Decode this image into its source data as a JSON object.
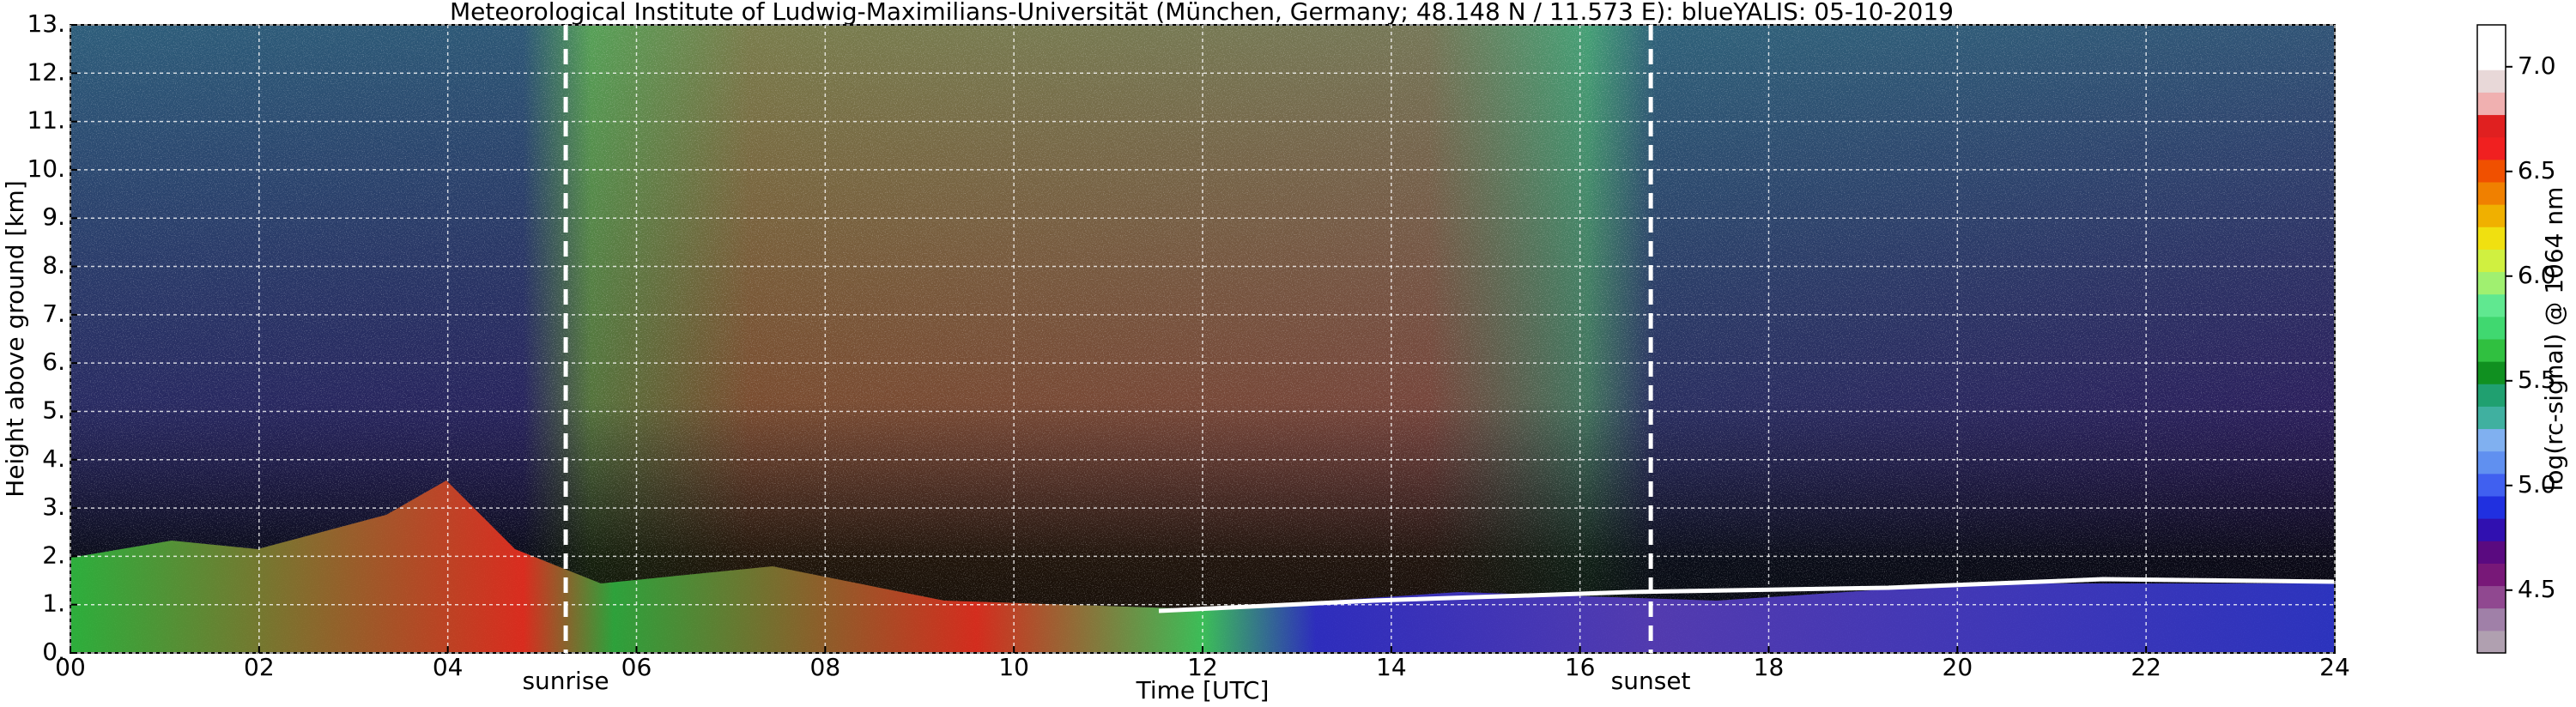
{
  "chart_data": {
    "type": "heatmap",
    "title": "Meteorological Institute of Ludwig-Maximilians-Universität (München, Germany; 48.148 N / 11.573 E):    blueYALIS: 05-10-2019",
    "xlabel": "Time [UTC]",
    "ylabel": "Height above ground [km]",
    "xlim": [
      0,
      24
    ],
    "xticks": [
      {
        "value": 0,
        "label": "00"
      },
      {
        "value": 2,
        "label": "02"
      },
      {
        "value": 4,
        "label": "04"
      },
      {
        "value": 6,
        "label": "06"
      },
      {
        "value": 8,
        "label": "08"
      },
      10,
      12,
      14,
      16,
      18,
      20,
      22,
      24
    ],
    "ylim": [
      0,
      13
    ],
    "yticks": [
      {
        "value": 0,
        "label": "0."
      },
      {
        "value": 1,
        "label": "1."
      },
      {
        "value": 2,
        "label": "2."
      },
      {
        "value": 3,
        "label": "3."
      },
      {
        "value": 4,
        "label": "4."
      },
      {
        "value": 5,
        "label": "5."
      },
      {
        "value": 6,
        "label": "6."
      },
      {
        "value": 7,
        "label": "7."
      },
      {
        "value": 8,
        "label": "8."
      },
      {
        "value": 9,
        "label": "9."
      },
      {
        "value": 10,
        "label": "10."
      },
      {
        "value": 11,
        "label": "11."
      },
      {
        "value": 12,
        "label": "12."
      },
      {
        "value": 13,
        "label": "13."
      }
    ],
    "grid": true,
    "annotations": [
      {
        "text": "sunrise",
        "x": 5.25
      },
      {
        "text": "sunset",
        "x": 16.75
      }
    ],
    "colorbar": {
      "label": "log(rc-signal) @ 1064 nm",
      "clim": [
        4.2,
        7.2
      ],
      "ticks": [
        4.5,
        {
          "value": 5.0,
          "label": "5.0"
        },
        5.5,
        {
          "value": 6.0,
          "label": "6.0"
        },
        6.5,
        {
          "value": 7.0,
          "label": "7.0"
        }
      ],
      "colors": [
        "#b0a0b0",
        "#a080a8",
        "#904890",
        "#781878",
        "#5a0a80",
        "#3010b0",
        "#2030e0",
        "#4060f0",
        "#6090f0",
        "#80b0f0",
        "#40b0a0",
        "#20a070",
        "#109020",
        "#30c040",
        "#40d870",
        "#60e890",
        "#a0f070",
        "#d0f040",
        "#f0e010",
        "#f0b000",
        "#f08000",
        "#f05000",
        "#f02020",
        "#e02020",
        "#f0b0b0",
        "#e8d8d8",
        "#ffffff",
        "#ffffff"
      ]
    }
  }
}
